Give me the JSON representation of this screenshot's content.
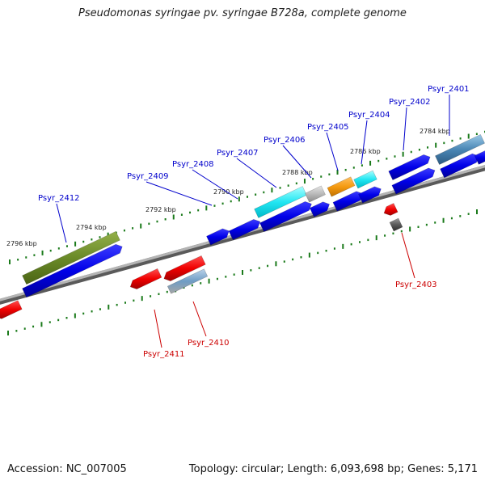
{
  "title": "Pseudomonas syringae pv. syringae B728a, complete genome",
  "footer": {
    "accession": "Accession: NC_007005",
    "topology": "Topology: circular; Length: 6,093,698 bp; Genes: 5,171"
  },
  "colors": {
    "forward_label": "#0000cc",
    "reverse_label": "#cc0000",
    "forward_gene": "#0000e6",
    "reverse_gene": "#f01010",
    "backbone": "#8a8a8a",
    "tick": "#1a7a1a"
  },
  "scale_labels": [
    "2784 kbp",
    "2786 kbp",
    "2788 kbp",
    "2790 kbp",
    "2792 kbp",
    "2794 kbp",
    "2796 kbp"
  ],
  "gene_labels": {
    "forward": [
      "Psyr_2401",
      "Psyr_2402",
      "Psyr_2404",
      "Psyr_2405",
      "Psyr_2406",
      "Psyr_2407",
      "Psyr_2408",
      "Psyr_2409",
      "Psyr_2412"
    ],
    "reverse": [
      "Psyr_2403",
      "Psyr_2410",
      "Psyr_2411"
    ]
  }
}
